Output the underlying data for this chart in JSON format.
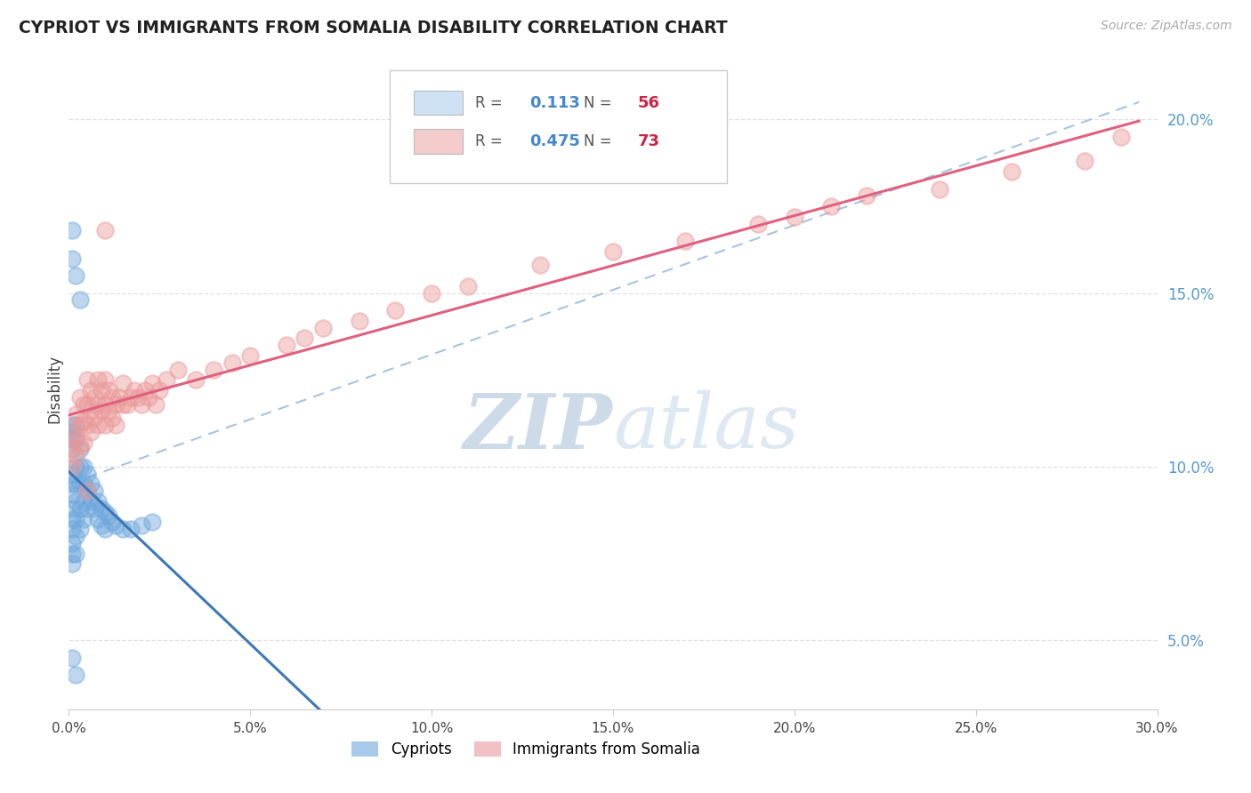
{
  "title": "CYPRIOT VS IMMIGRANTS FROM SOMALIA DISABILITY CORRELATION CHART",
  "source": "Source: ZipAtlas.com",
  "ylabel": "Disability",
  "xlim": [
    0.0,
    0.3
  ],
  "ylim": [
    0.03,
    0.215
  ],
  "yticks_right": [
    0.05,
    0.1,
    0.15,
    0.2
  ],
  "xticks": [
    0.0,
    0.05,
    0.1,
    0.15,
    0.2,
    0.25,
    0.3
  ],
  "cypriot_R": 0.113,
  "cypriot_N": 56,
  "somalia_R": 0.475,
  "somalia_N": 73,
  "cypriot_color": "#6fa8dc",
  "somalia_color": "#ea9999",
  "cypriot_line_color": "#3d78b5",
  "somalia_line_color": "#e06080",
  "dashed_line_color": "#a8c4e0",
  "legend_color_cypriot": "#cfe2f3",
  "legend_color_somalia": "#f4cccc",
  "watermark_zip": "ZIP",
  "watermark_atlas": "atlas",
  "watermark_color": "#d0dce8",
  "R_value_color": "#4488cc",
  "N_value_color": "#cc2244",
  "cypriot_x": [
    0.001,
    0.001,
    0.001,
    0.001,
    0.001,
    0.001,
    0.001,
    0.001,
    0.001,
    0.001,
    0.001,
    0.001,
    0.001,
    0.002,
    0.002,
    0.002,
    0.002,
    0.002,
    0.002,
    0.002,
    0.002,
    0.003,
    0.003,
    0.003,
    0.003,
    0.003,
    0.004,
    0.004,
    0.004,
    0.004,
    0.005,
    0.005,
    0.005,
    0.006,
    0.006,
    0.007,
    0.007,
    0.008,
    0.008,
    0.009,
    0.009,
    0.01,
    0.01,
    0.011,
    0.012,
    0.013,
    0.015,
    0.017,
    0.02,
    0.023,
    0.001,
    0.001,
    0.002,
    0.003,
    0.001,
    0.002
  ],
  "cypriot_y": [
    0.105,
    0.108,
    0.11,
    0.112,
    0.098,
    0.095,
    0.092,
    0.088,
    0.085,
    0.082,
    0.078,
    0.075,
    0.072,
    0.108,
    0.112,
    0.1,
    0.095,
    0.09,
    0.085,
    0.08,
    0.075,
    0.105,
    0.1,
    0.095,
    0.088,
    0.082,
    0.1,
    0.095,
    0.09,
    0.085,
    0.098,
    0.093,
    0.088,
    0.095,
    0.09,
    0.093,
    0.088,
    0.09,
    0.085,
    0.088,
    0.083,
    0.087,
    0.082,
    0.086,
    0.084,
    0.083,
    0.082,
    0.082,
    0.083,
    0.084,
    0.168,
    0.16,
    0.155,
    0.148,
    0.045,
    0.04
  ],
  "somalia_x": [
    0.001,
    0.001,
    0.001,
    0.002,
    0.002,
    0.002,
    0.003,
    0.003,
    0.003,
    0.004,
    0.004,
    0.004,
    0.005,
    0.005,
    0.005,
    0.006,
    0.006,
    0.006,
    0.007,
    0.007,
    0.008,
    0.008,
    0.008,
    0.009,
    0.009,
    0.01,
    0.01,
    0.01,
    0.011,
    0.011,
    0.012,
    0.012,
    0.013,
    0.013,
    0.014,
    0.015,
    0.015,
    0.016,
    0.017,
    0.018,
    0.019,
    0.02,
    0.021,
    0.022,
    0.023,
    0.024,
    0.025,
    0.027,
    0.03,
    0.035,
    0.04,
    0.045,
    0.05,
    0.06,
    0.065,
    0.07,
    0.08,
    0.09,
    0.1,
    0.11,
    0.13,
    0.15,
    0.17,
    0.19,
    0.2,
    0.21,
    0.22,
    0.24,
    0.26,
    0.28,
    0.005,
    0.01,
    0.29
  ],
  "somalia_y": [
    0.11,
    0.105,
    0.1,
    0.115,
    0.108,
    0.103,
    0.12,
    0.112,
    0.106,
    0.118,
    0.113,
    0.107,
    0.125,
    0.118,
    0.112,
    0.122,
    0.116,
    0.11,
    0.12,
    0.114,
    0.125,
    0.118,
    0.112,
    0.122,
    0.116,
    0.125,
    0.118,
    0.112,
    0.122,
    0.116,
    0.12,
    0.114,
    0.118,
    0.112,
    0.12,
    0.118,
    0.124,
    0.118,
    0.12,
    0.122,
    0.12,
    0.118,
    0.122,
    0.12,
    0.124,
    0.118,
    0.122,
    0.125,
    0.128,
    0.125,
    0.128,
    0.13,
    0.132,
    0.135,
    0.137,
    0.14,
    0.142,
    0.145,
    0.15,
    0.152,
    0.158,
    0.162,
    0.165,
    0.17,
    0.172,
    0.175,
    0.178,
    0.18,
    0.185,
    0.188,
    0.093,
    0.168,
    0.195
  ]
}
